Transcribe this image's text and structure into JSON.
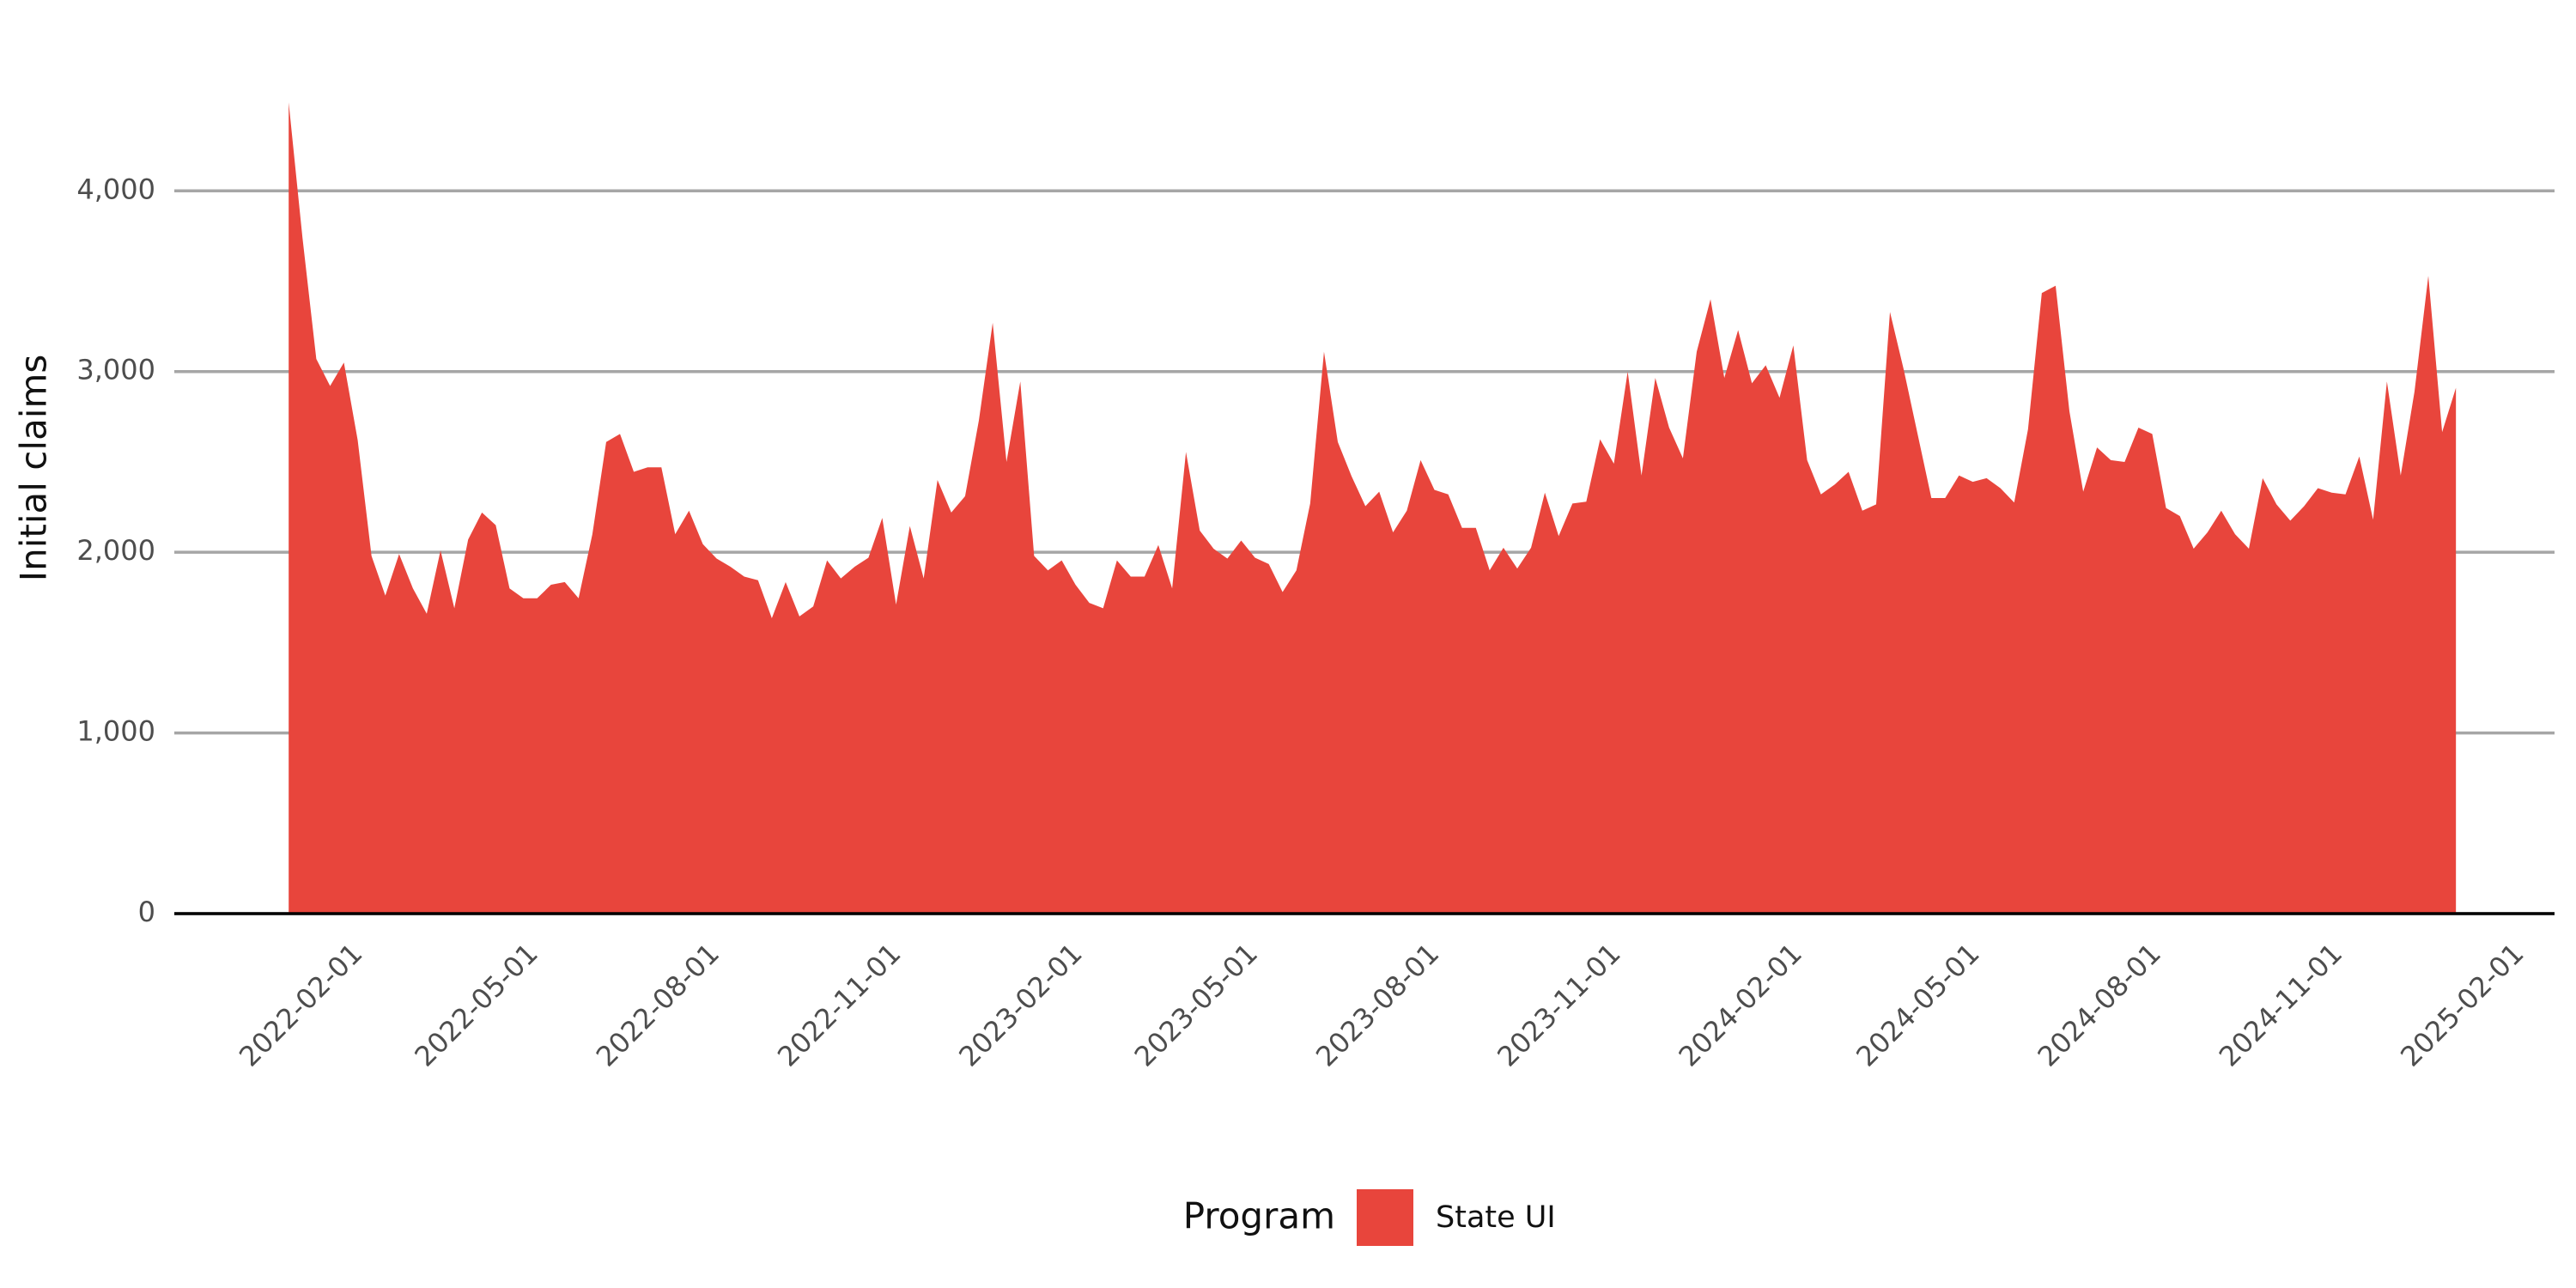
{
  "chart_data": {
    "type": "area",
    "y_label": "Initial claims",
    "legend_title": "Program",
    "legend": "bottom",
    "grid": true,
    "ylim": [
      0,
      4700
    ],
    "yticks": [
      0,
      {
        "value": 1000,
        "label": "1,000"
      },
      {
        "value": 2000,
        "label": "2,000"
      },
      {
        "value": 3000,
        "label": "3,000"
      },
      {
        "value": 4000,
        "label": "4,000"
      }
    ],
    "xlim": [
      "2021-11-04",
      "2025-02-23"
    ],
    "xticks": [
      "2022-02-01",
      "2022-05-01",
      "2022-08-01",
      "2022-11-01",
      "2023-02-01",
      "2023-05-01",
      "2023-08-01",
      "2023-11-01",
      "2024-02-01",
      "2024-05-01",
      "2024-08-01",
      "2024-11-01",
      "2025-02-01"
    ],
    "x": [
      "2022-01-01",
      "2022-01-08",
      "2022-01-15",
      "2022-01-22",
      "2022-01-29",
      "2022-02-05",
      "2022-02-12",
      "2022-02-19",
      "2022-02-26",
      "2022-03-05",
      "2022-03-12",
      "2022-03-19",
      "2022-03-26",
      "2022-04-02",
      "2022-04-09",
      "2022-04-16",
      "2022-04-23",
      "2022-04-30",
      "2022-05-07",
      "2022-05-14",
      "2022-05-21",
      "2022-05-28",
      "2022-06-04",
      "2022-06-11",
      "2022-06-18",
      "2022-06-25",
      "2022-07-02",
      "2022-07-09",
      "2022-07-16",
      "2022-07-23",
      "2022-07-30",
      "2022-08-06",
      "2022-08-13",
      "2022-08-20",
      "2022-08-27",
      "2022-09-03",
      "2022-09-10",
      "2022-09-17",
      "2022-09-24",
      "2022-10-01",
      "2022-10-08",
      "2022-10-15",
      "2022-10-22",
      "2022-10-29",
      "2022-11-05",
      "2022-11-12",
      "2022-11-19",
      "2022-11-26",
      "2022-12-03",
      "2022-12-10",
      "2022-12-17",
      "2022-12-24",
      "2022-12-31",
      "2023-01-07",
      "2023-01-14",
      "2023-01-21",
      "2023-01-28",
      "2023-02-04",
      "2023-02-11",
      "2023-02-18",
      "2023-02-25",
      "2023-03-04",
      "2023-03-11",
      "2023-03-18",
      "2023-03-25",
      "2023-04-01",
      "2023-04-08",
      "2023-04-15",
      "2023-04-22",
      "2023-04-29",
      "2023-05-06",
      "2023-05-13",
      "2023-05-20",
      "2023-05-27",
      "2023-06-03",
      "2023-06-10",
      "2023-06-17",
      "2023-06-24",
      "2023-07-01",
      "2023-07-08",
      "2023-07-15",
      "2023-07-22",
      "2023-07-29",
      "2023-08-05",
      "2023-08-12",
      "2023-08-19",
      "2023-08-26",
      "2023-09-02",
      "2023-09-09",
      "2023-09-16",
      "2023-09-23",
      "2023-09-30",
      "2023-10-07",
      "2023-10-14",
      "2023-10-21",
      "2023-10-28",
      "2023-11-04",
      "2023-11-11",
      "2023-11-18",
      "2023-11-25",
      "2023-12-02",
      "2023-12-09",
      "2023-12-16",
      "2023-12-23",
      "2023-12-30",
      "2024-01-06",
      "2024-01-13",
      "2024-01-20",
      "2024-01-27",
      "2024-02-03",
      "2024-02-10",
      "2024-02-17",
      "2024-02-24",
      "2024-03-02",
      "2024-03-09",
      "2024-03-16",
      "2024-03-23",
      "2024-03-30",
      "2024-04-06",
      "2024-04-13",
      "2024-04-20",
      "2024-04-27",
      "2024-05-04",
      "2024-05-11",
      "2024-05-18",
      "2024-05-25",
      "2024-06-01",
      "2024-06-08",
      "2024-06-15",
      "2024-06-22",
      "2024-06-29",
      "2024-07-06",
      "2024-07-13",
      "2024-07-20",
      "2024-07-27",
      "2024-08-03",
      "2024-08-10",
      "2024-08-17",
      "2024-08-24",
      "2024-08-31",
      "2024-09-07",
      "2024-09-14",
      "2024-09-21",
      "2024-09-28",
      "2024-10-05",
      "2024-10-12",
      "2024-10-19",
      "2024-10-26",
      "2024-11-02",
      "2024-11-09",
      "2024-11-16",
      "2024-11-23",
      "2024-11-30",
      "2024-12-07",
      "2024-12-14",
      "2024-12-21",
      "2024-12-28",
      "2025-01-04"
    ],
    "series": [
      {
        "name": "State UI",
        "color": "#e8453c",
        "values": [
          4490,
          3740,
          3070,
          2920,
          3050,
          2620,
          1980,
          1760,
          1990,
          1800,
          1660,
          2010,
          1690,
          2070,
          2220,
          2150,
          1800,
          1745,
          1745,
          1820,
          1835,
          1745,
          2100,
          2610,
          2655,
          2445,
          2470,
          2470,
          2100,
          2230,
          2045,
          1965,
          1920,
          1865,
          1845,
          1635,
          1835,
          1645,
          1700,
          1955,
          1855,
          1920,
          1970,
          2190,
          1710,
          2145,
          1855,
          2400,
          2220,
          2310,
          2730,
          3270,
          2500,
          2945,
          1980,
          1900,
          1955,
          1820,
          1720,
          1690,
          1955,
          1865,
          1865,
          2040,
          1800,
          2555,
          2120,
          2020,
          1965,
          2065,
          1970,
          1935,
          1780,
          1900,
          2270,
          3110,
          2610,
          2420,
          2255,
          2335,
          2110,
          2230,
          2510,
          2345,
          2320,
          2135,
          2135,
          1900,
          2025,
          1910,
          2025,
          2330,
          2090,
          2270,
          2280,
          2625,
          2490,
          3000,
          2425,
          2965,
          2690,
          2520,
          3110,
          3400,
          2965,
          3230,
          2935,
          3035,
          2855,
          3145,
          2510,
          2320,
          2375,
          2445,
          2230,
          2265,
          3330,
          3010,
          2655,
          2300,
          2300,
          2425,
          2390,
          2410,
          2355,
          2275,
          2680,
          3435,
          3475,
          2780,
          2335,
          2580,
          2510,
          2500,
          2690,
          2655,
          2245,
          2200,
          2020,
          2110,
          2230,
          2100,
          2020,
          2410,
          2265,
          2175,
          2255,
          2355,
          2330,
          2320,
          2530,
          2180,
          2945,
          2425,
          2890,
          3530,
          2665,
          2910
        ]
      }
    ]
  }
}
